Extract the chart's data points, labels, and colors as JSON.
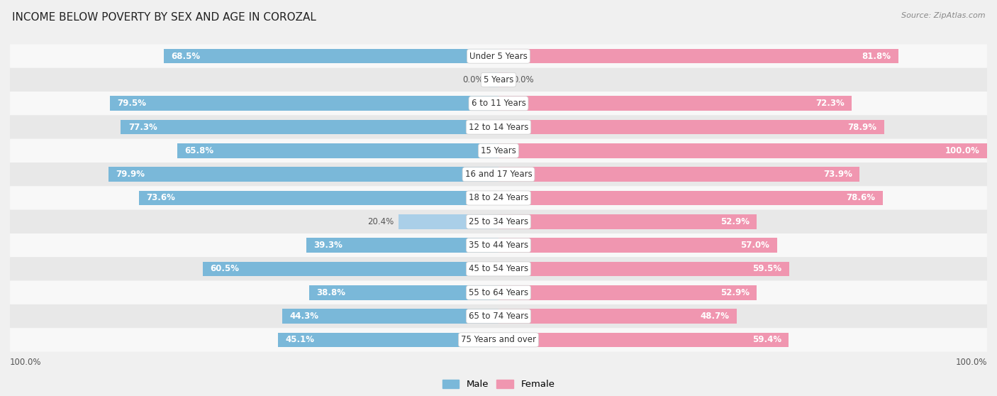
{
  "title": "INCOME BELOW POVERTY BY SEX AND AGE IN COROZAL",
  "source": "Source: ZipAtlas.com",
  "categories": [
    "Under 5 Years",
    "5 Years",
    "6 to 11 Years",
    "12 to 14 Years",
    "15 Years",
    "16 and 17 Years",
    "18 to 24 Years",
    "25 to 34 Years",
    "35 to 44 Years",
    "45 to 54 Years",
    "55 to 64 Years",
    "65 to 74 Years",
    "75 Years and over"
  ],
  "male_values": [
    68.5,
    0.0,
    79.5,
    77.3,
    65.8,
    79.9,
    73.6,
    20.4,
    39.3,
    60.5,
    38.8,
    44.3,
    45.1
  ],
  "female_values": [
    81.8,
    0.0,
    72.3,
    78.9,
    100.0,
    73.9,
    78.6,
    52.9,
    57.0,
    59.5,
    52.9,
    48.7,
    59.4
  ],
  "male_color": "#7ab8d9",
  "female_color": "#f096b0",
  "male_color_light": "#aacfe8",
  "female_color_light": "#f5b8cb",
  "bg_color": "#f0f0f0",
  "row_bg_even": "#f8f8f8",
  "row_bg_odd": "#e8e8e8",
  "max_value": 100.0,
  "inside_label_threshold": 25,
  "bar_height": 0.62
}
